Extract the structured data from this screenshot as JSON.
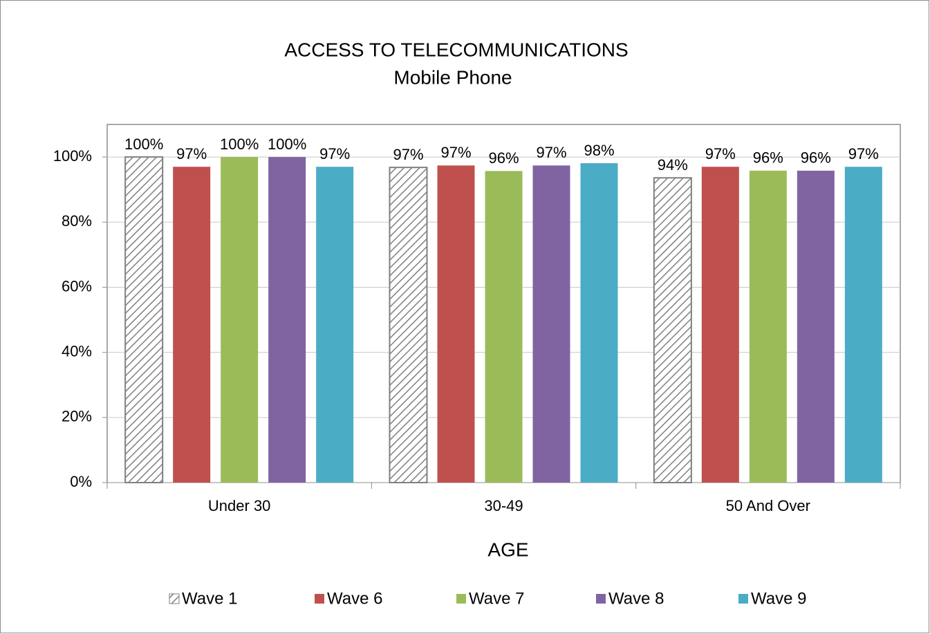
{
  "chart_data": {
    "type": "bar",
    "title": "ACCESS TO TELECOMMUNICATIONS",
    "subtitle": "Mobile Phone",
    "x_label": "AGE",
    "categories": [
      "Under 30",
      "30-49",
      "50 And Over"
    ],
    "series": [
      {
        "name": "Wave 1",
        "color": "#7f7f7f",
        "pattern": "hatch",
        "values": [
          100,
          96.8,
          93.6
        ],
        "value_labels": [
          "100%",
          "97%",
          "94%"
        ]
      },
      {
        "name": "Wave 6",
        "color": "#c0504d",
        "values": [
          97,
          97.4,
          97
        ],
        "value_labels": [
          "97%",
          "97%",
          "97%"
        ]
      },
      {
        "name": "Wave 7",
        "color": "#9bbb59",
        "values": [
          100,
          95.7,
          95.8
        ],
        "value_labels": [
          "100%",
          "96%",
          "96%"
        ]
      },
      {
        "name": "Wave 8",
        "color": "#8064a2",
        "values": [
          100,
          97.4,
          95.8
        ],
        "value_labels": [
          "100%",
          "97%",
          "96%"
        ]
      },
      {
        "name": "Wave 9",
        "color": "#4bacc6",
        "values": [
          97,
          98.1,
          97
        ],
        "value_labels": [
          "97%",
          "98%",
          "97%"
        ]
      }
    ],
    "ylim": [
      0,
      110
    ],
    "yticks": [
      {
        "value": 0,
        "label": "0%"
      },
      {
        "value": 20,
        "label": "20%"
      },
      {
        "value": 40,
        "label": "40%"
      },
      {
        "value": 60,
        "label": "60%"
      },
      {
        "value": 80,
        "label": "80%"
      },
      {
        "value": 100,
        "label": "100%"
      }
    ],
    "grid": true,
    "legend": "bottom"
  }
}
